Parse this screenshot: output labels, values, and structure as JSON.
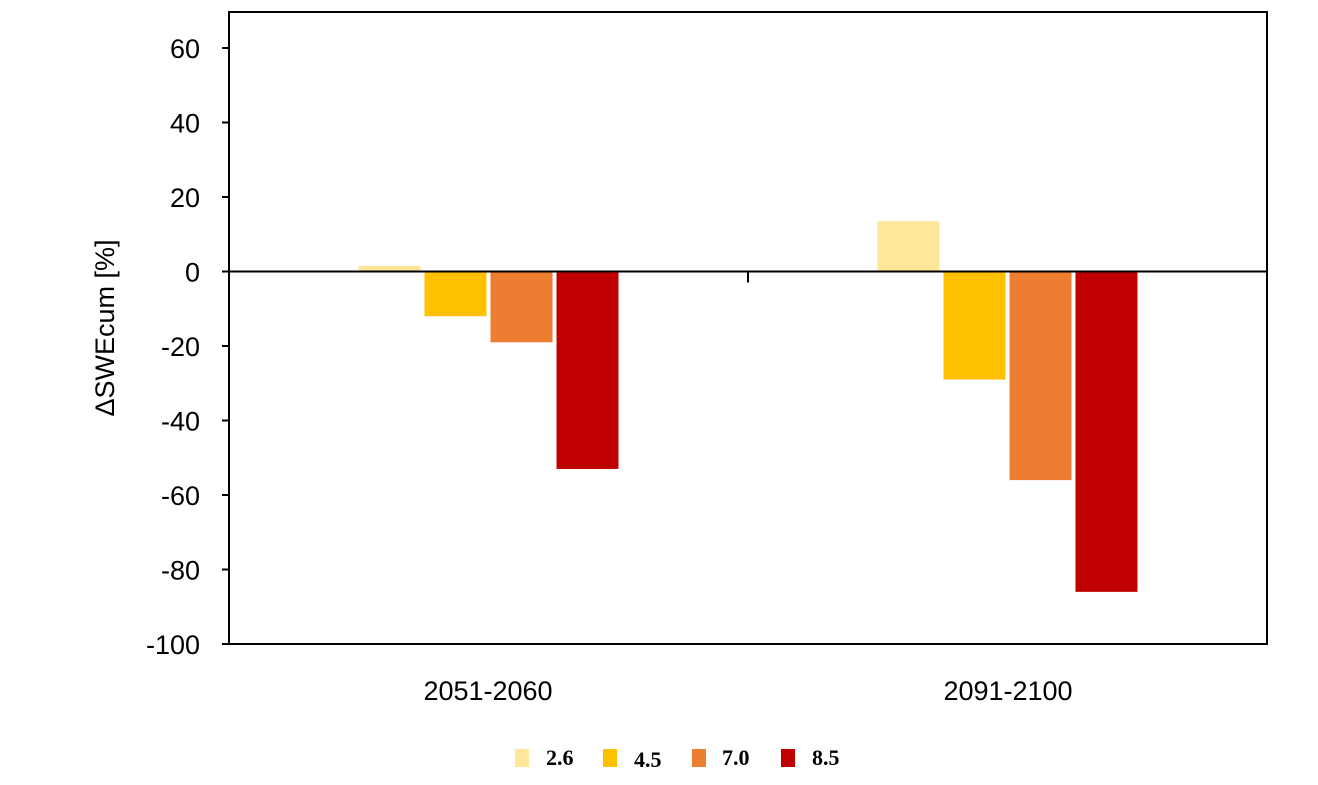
{
  "chart_data": {
    "type": "bar",
    "title": "",
    "xlabel": "",
    "ylabel": "ΔSWEcum [%]",
    "ylim": [
      -100,
      70
    ],
    "yticks": [
      60,
      40,
      20,
      0,
      -20,
      -40,
      -60,
      -80,
      -100
    ],
    "categories": [
      "2051-2060",
      "2091-2100"
    ],
    "series": [
      {
        "name": "2.6",
        "color": "#FFE699",
        "values": [
          1.5,
          13.5
        ]
      },
      {
        "name": "4.5",
        "color": "#FFC000",
        "values": [
          -12,
          -29
        ]
      },
      {
        "name": "7.0",
        "color": "#ED7D31",
        "values": [
          -19,
          -56
        ]
      },
      {
        "name": "8.5",
        "color": "#C00000",
        "values": [
          -53,
          -86
        ]
      }
    ],
    "legend_position": "bottom",
    "grid": false
  }
}
